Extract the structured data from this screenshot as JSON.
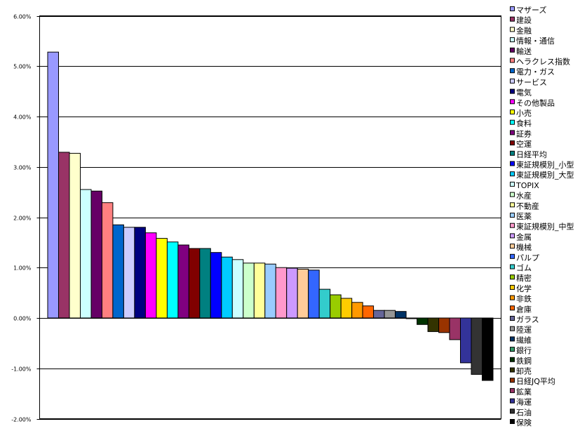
{
  "chart_data": {
    "type": "bar",
    "title": "",
    "xlabel": "",
    "ylabel": "",
    "ylim": [
      -0.02,
      0.06
    ],
    "yticks": [
      "6.00%",
      "5.00%",
      "4.00%",
      "3.00%",
      "2.00%",
      "1.00%",
      "0.00%",
      "-1.00%",
      "-2.00%"
    ],
    "grid": true,
    "legend_position": "right",
    "series": [
      {
        "name": "マザーズ",
        "value": 0.0528,
        "color": "#9999FF"
      },
      {
        "name": "建設",
        "value": 0.0329,
        "color": "#993366"
      },
      {
        "name": "金融",
        "value": 0.0327,
        "color": "#FFFFCC"
      },
      {
        "name": "情報・通信",
        "value": 0.0255,
        "color": "#CCFFFF"
      },
      {
        "name": "輸送",
        "value": 0.0252,
        "color": "#660066"
      },
      {
        "name": "ヘラクレス指数",
        "value": 0.0229,
        "color": "#FF8080"
      },
      {
        "name": "電力・ガス",
        "value": 0.0185,
        "color": "#0066CC"
      },
      {
        "name": "サービス",
        "value": 0.018,
        "color": "#CCCCFF"
      },
      {
        "name": "電気",
        "value": 0.018,
        "color": "#000080"
      },
      {
        "name": "その他製品",
        "value": 0.0169,
        "color": "#FF00FF"
      },
      {
        "name": "小売",
        "value": 0.0158,
        "color": "#FFFF00"
      },
      {
        "name": "食料",
        "value": 0.0151,
        "color": "#00FFFF"
      },
      {
        "name": "証券",
        "value": 0.0145,
        "color": "#800080"
      },
      {
        "name": "空運",
        "value": 0.0138,
        "color": "#800000"
      },
      {
        "name": "日経平均",
        "value": 0.0138,
        "color": "#008080"
      },
      {
        "name": "東証規模別_小型",
        "value": 0.013,
        "color": "#0000FF"
      },
      {
        "name": "東証規模別_大型",
        "value": 0.0121,
        "color": "#00CCFF"
      },
      {
        "name": "TOPIX",
        "value": 0.0116,
        "color": "#CCFFFF"
      },
      {
        "name": "水産",
        "value": 0.0109,
        "color": "#CCFFCC"
      },
      {
        "name": "不動産",
        "value": 0.0109,
        "color": "#FFFF99"
      },
      {
        "name": "医薬",
        "value": 0.0107,
        "color": "#99CCFF"
      },
      {
        "name": "東証規模別_中型",
        "value": 0.01,
        "color": "#FF99CC"
      },
      {
        "name": "金属",
        "value": 0.0099,
        "color": "#CC99FF"
      },
      {
        "name": "機械",
        "value": 0.0097,
        "color": "#FFCC99"
      },
      {
        "name": "パルプ",
        "value": 0.0095,
        "color": "#3366FF"
      },
      {
        "name": "ゴム",
        "value": 0.0057,
        "color": "#33CCCC"
      },
      {
        "name": "精密",
        "value": 0.0046,
        "color": "#99CC00"
      },
      {
        "name": "化学",
        "value": 0.0039,
        "color": "#FFCC00"
      },
      {
        "name": "非鉄",
        "value": 0.0031,
        "color": "#FF9900"
      },
      {
        "name": "倉庫",
        "value": 0.0024,
        "color": "#FF6600"
      },
      {
        "name": "ガラス",
        "value": 0.0015,
        "color": "#666699"
      },
      {
        "name": "陸運",
        "value": 0.0015,
        "color": "#969696"
      },
      {
        "name": "繊維",
        "value": 0.0013,
        "color": "#003366"
      },
      {
        "name": "銀行",
        "value": -0.0001,
        "color": "#339966"
      },
      {
        "name": "鉄鋼",
        "value": -0.0013,
        "color": "#003300"
      },
      {
        "name": "卸売",
        "value": -0.0027,
        "color": "#333300"
      },
      {
        "name": "日経JQ平均",
        "value": -0.0029,
        "color": "#993300"
      },
      {
        "name": "鉱業",
        "value": -0.0043,
        "color": "#993366"
      },
      {
        "name": "海運",
        "value": -0.0089,
        "color": "#333399"
      },
      {
        "name": "石油",
        "value": -0.0112,
        "color": "#333333"
      },
      {
        "name": "保険",
        "value": -0.0124,
        "color": "#000000"
      }
    ]
  }
}
